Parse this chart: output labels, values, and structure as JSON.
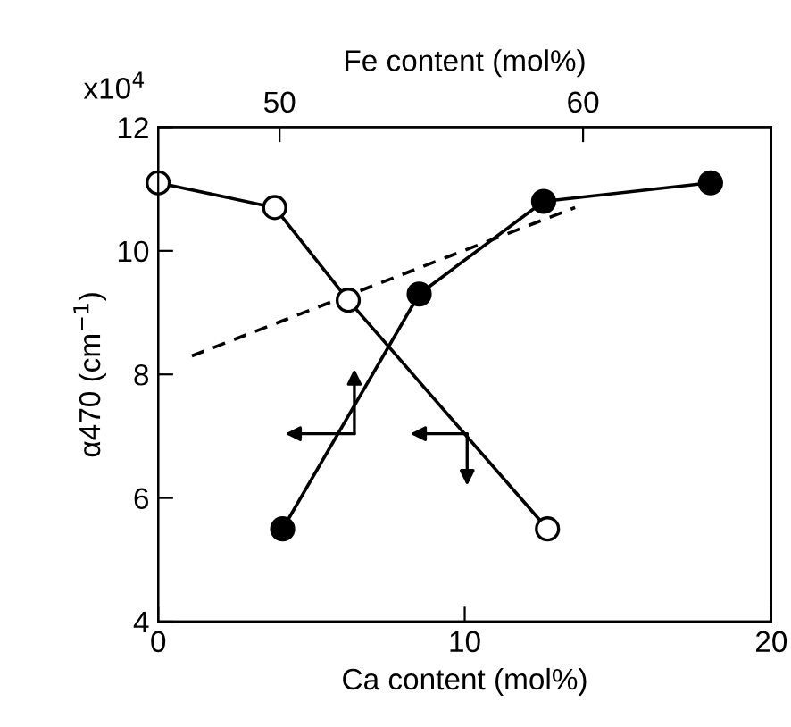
{
  "chart_data": {
    "type": "line",
    "xlabel": "Ca content (mol%)",
    "x2label": "Fe content (mol%)",
    "ylabel": "α470 (cm$^{−1}$)",
    "annotations": [
      "x10$^{4}$"
    ],
    "xlim": [
      0,
      20
    ],
    "xticks": [
      0,
      10,
      20
    ],
    "x2lim": [
      46,
      66.2
    ],
    "x2ticks": [
      50,
      60
    ],
    "ylim": [
      4,
      12
    ],
    "yticks": [
      4,
      6,
      8,
      10,
      12
    ],
    "grid": false,
    "legend": false,
    "marker": "circle",
    "series": [
      {
        "color": "#000000",
        "colors": [
          "#ffffff",
          "#ffffff",
          "#ffffff",
          "#ffffff"
        ],
        "x": [
          0,
          3.8,
          6.2,
          12.7
        ],
        "values": [
          11.1,
          10.7,
          9.2,
          5.5
        ]
      },
      {
        "color": "#000000",
        "colors": [
          "#000000",
          "#000000",
          "#000000",
          "#000000"
        ],
        "axis": "x2",
        "x": [
          50.1,
          54.6,
          58.7,
          64.2
        ],
        "values": [
          5.5,
          9.3,
          10.8,
          11.1
        ]
      },
      {
        "color": "#000000",
        "marker": "none",
        "line_style": "dashed",
        "x": [
          1.1,
          13.6
        ],
        "values": [
          8.3,
          10.7
        ]
      }
    ]
  }
}
